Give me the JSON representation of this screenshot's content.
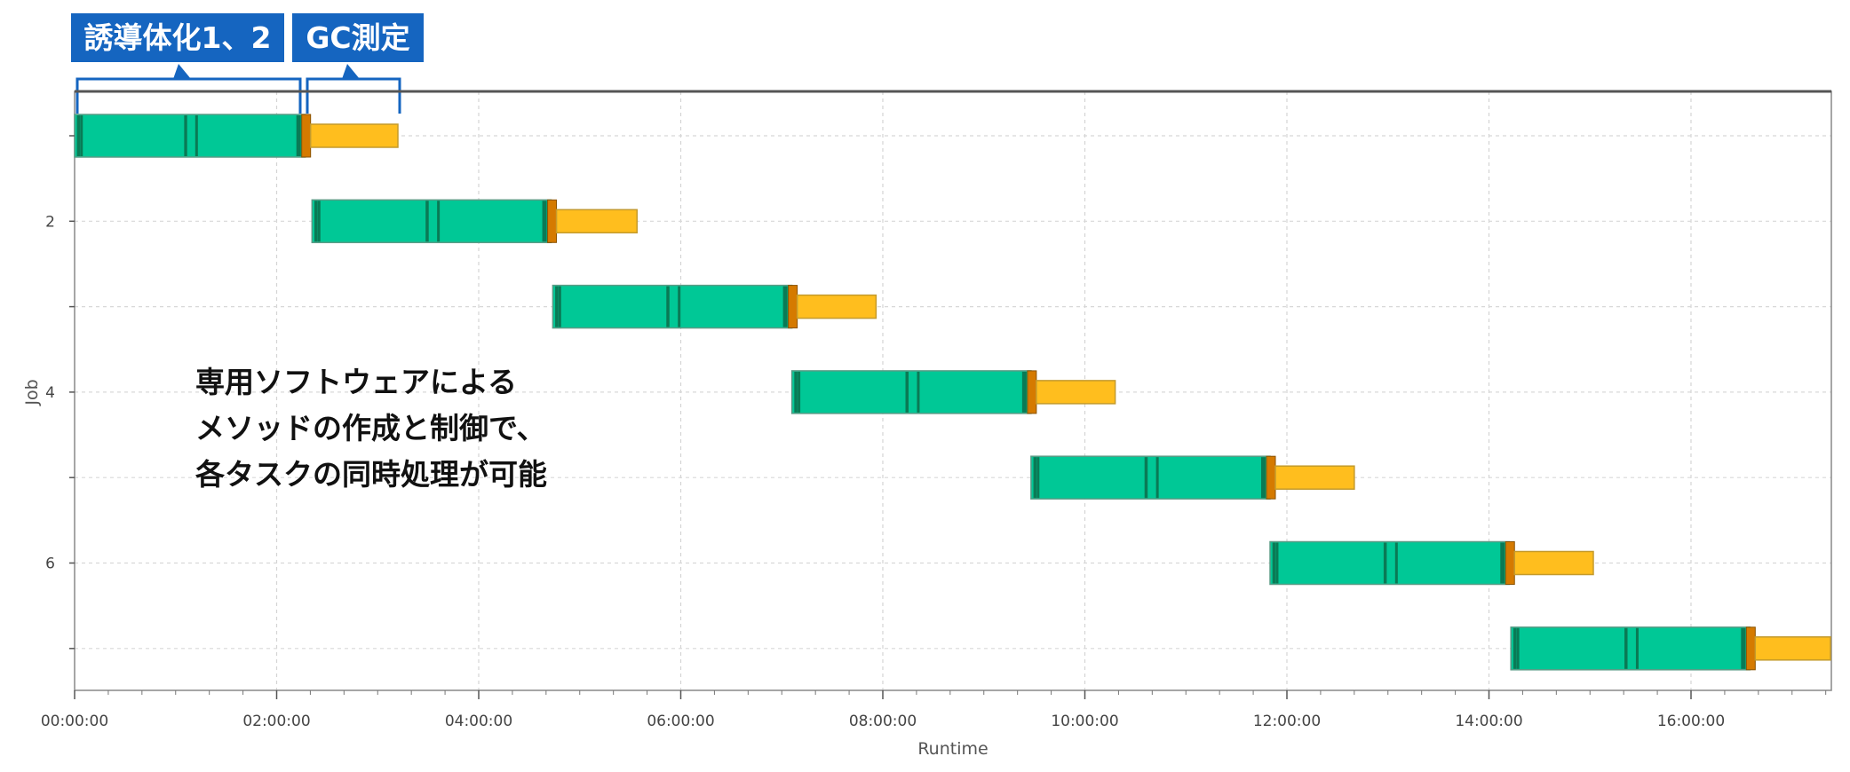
{
  "header_labels": {
    "induction": "誘導体化1、2",
    "gc": "GC測定"
  },
  "annotation": {
    "line1": "専用ソフトウェアによる",
    "line2": "メソッドの作成と制御で、",
    "line3": "各タスクの同時処理が可能"
  },
  "colors": {
    "task": "#00c896",
    "task_stripe": "#0a7a55",
    "gc": "#ffbe1e",
    "gc_cap": "#d57a00",
    "label_bg": "#1565c0",
    "bracket": "#1565c0"
  },
  "chart_data": {
    "type": "gantt",
    "title": "",
    "xlabel": "Runtime",
    "ylabel": "Job",
    "x_unit": "hours",
    "xlim": [
      0,
      17.4
    ],
    "ylim": [
      0.4,
      7.5
    ],
    "x_tick_labels": [
      "00:00:00",
      "02:00:00",
      "04:00:00",
      "06:00:00",
      "08:00:00",
      "10:00:00",
      "12:00:00",
      "14:00:00",
      "16:00:00"
    ],
    "x_tick_values": [
      0,
      2,
      4,
      6,
      8,
      10,
      12,
      14,
      16
    ],
    "y_tick_labels": [
      "2",
      "4",
      "6"
    ],
    "y_tick_values": [
      2,
      4,
      6
    ],
    "grid": true,
    "bars": [
      {
        "job": 1,
        "derivatization_start": 0.0,
        "derivatization_end": 2.283,
        "gc_start": 2.283,
        "gc_end": 3.2
      },
      {
        "job": 2,
        "derivatization_start": 2.35,
        "derivatization_end": 4.717,
        "gc_start": 4.717,
        "gc_end": 5.567
      },
      {
        "job": 3,
        "derivatization_start": 4.733,
        "derivatization_end": 7.1,
        "gc_start": 7.1,
        "gc_end": 7.933
      },
      {
        "job": 4,
        "derivatization_start": 7.1,
        "derivatization_end": 9.467,
        "gc_start": 9.467,
        "gc_end": 10.3
      },
      {
        "job": 5,
        "derivatization_start": 9.467,
        "derivatization_end": 11.833,
        "gc_start": 11.833,
        "gc_end": 12.667
      },
      {
        "job": 6,
        "derivatization_start": 11.833,
        "derivatization_end": 14.2,
        "gc_start": 14.2,
        "gc_end": 15.033
      },
      {
        "job": 7,
        "derivatization_start": 14.217,
        "derivatization_end": 16.583,
        "gc_start": 16.583,
        "gc_end": 17.4
      }
    ]
  }
}
